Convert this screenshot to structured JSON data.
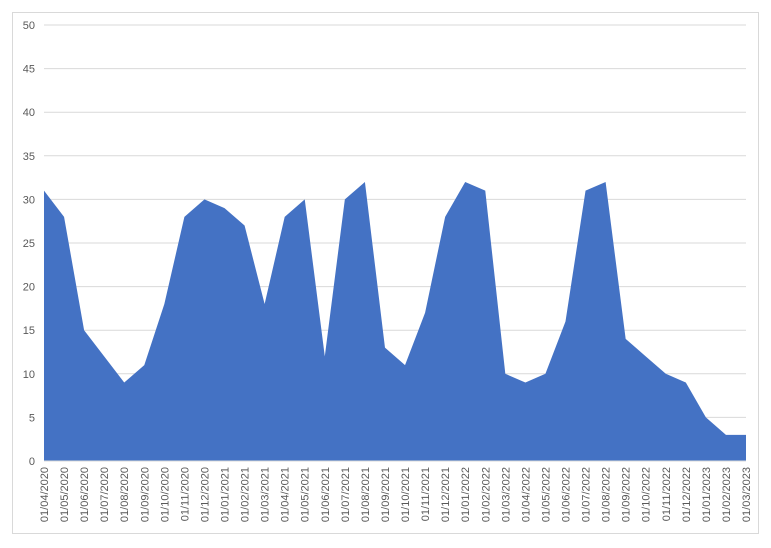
{
  "chart_data": {
    "type": "area",
    "categories": [
      "01/04/2020",
      "01/05/2020",
      "01/06/2020",
      "01/07/2020",
      "01/08/2020",
      "01/09/2020",
      "01/10/2020",
      "01/11/2020",
      "01/12/2020",
      "01/01/2021",
      "01/02/2021",
      "01/03/2021",
      "01/04/2021",
      "01/05/2021",
      "01/06/2021",
      "01/07/2021",
      "01/08/2021",
      "01/09/2021",
      "01/10/2021",
      "01/11/2021",
      "01/12/2021",
      "01/01/2022",
      "01/02/2022",
      "01/03/2022",
      "01/04/2022",
      "01/05/2022",
      "01/06/2022",
      "01/07/2022",
      "01/08/2022",
      "01/09/2022",
      "01/10/2022",
      "01/11/2022",
      "01/12/2022",
      "01/01/2023",
      "01/02/2023",
      "01/03/2023"
    ],
    "values": [
      31,
      28,
      15,
      12,
      9,
      11,
      18,
      28,
      30,
      29,
      27,
      18,
      28,
      30,
      12,
      30,
      32,
      13,
      11,
      17,
      28,
      32,
      31,
      10,
      9,
      10,
      16,
      31,
      32,
      14,
      12,
      10,
      9,
      5,
      3,
      3
    ],
    "color": "#4472c4",
    "ylim": [
      0,
      50
    ],
    "yticks": [
      0,
      5,
      10,
      15,
      20,
      25,
      30,
      35,
      40,
      45,
      50
    ],
    "grid": true
  }
}
